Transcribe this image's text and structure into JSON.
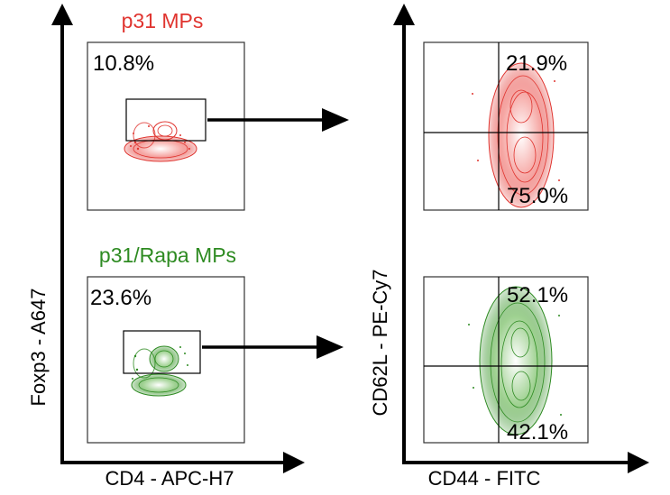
{
  "chart_data": [
    {
      "type": "scatter",
      "panel": "gating",
      "xlabel": "CD4 - APC-H7",
      "ylabel": "Foxp3 - A647",
      "groups": [
        {
          "name": "p31 MPs",
          "color": "#e0342f",
          "gate_percent": "10.8%"
        },
        {
          "name": "p31/Rapa MPs",
          "color": "#2e8b22",
          "gate_percent": "23.6%"
        }
      ]
    },
    {
      "type": "scatter",
      "panel": "quadrants",
      "xlabel": "CD44 - FITC",
      "ylabel": "CD62L - PE-Cy7",
      "groups": [
        {
          "name": "p31 MPs",
          "color": "#e0342f",
          "upper_right": "21.9%",
          "lower_right": "75.0%"
        },
        {
          "name": "p31/Rapa MPs",
          "color": "#2e8b22",
          "upper_right": "52.1%",
          "lower_right": "42.1%"
        }
      ]
    }
  ]
}
